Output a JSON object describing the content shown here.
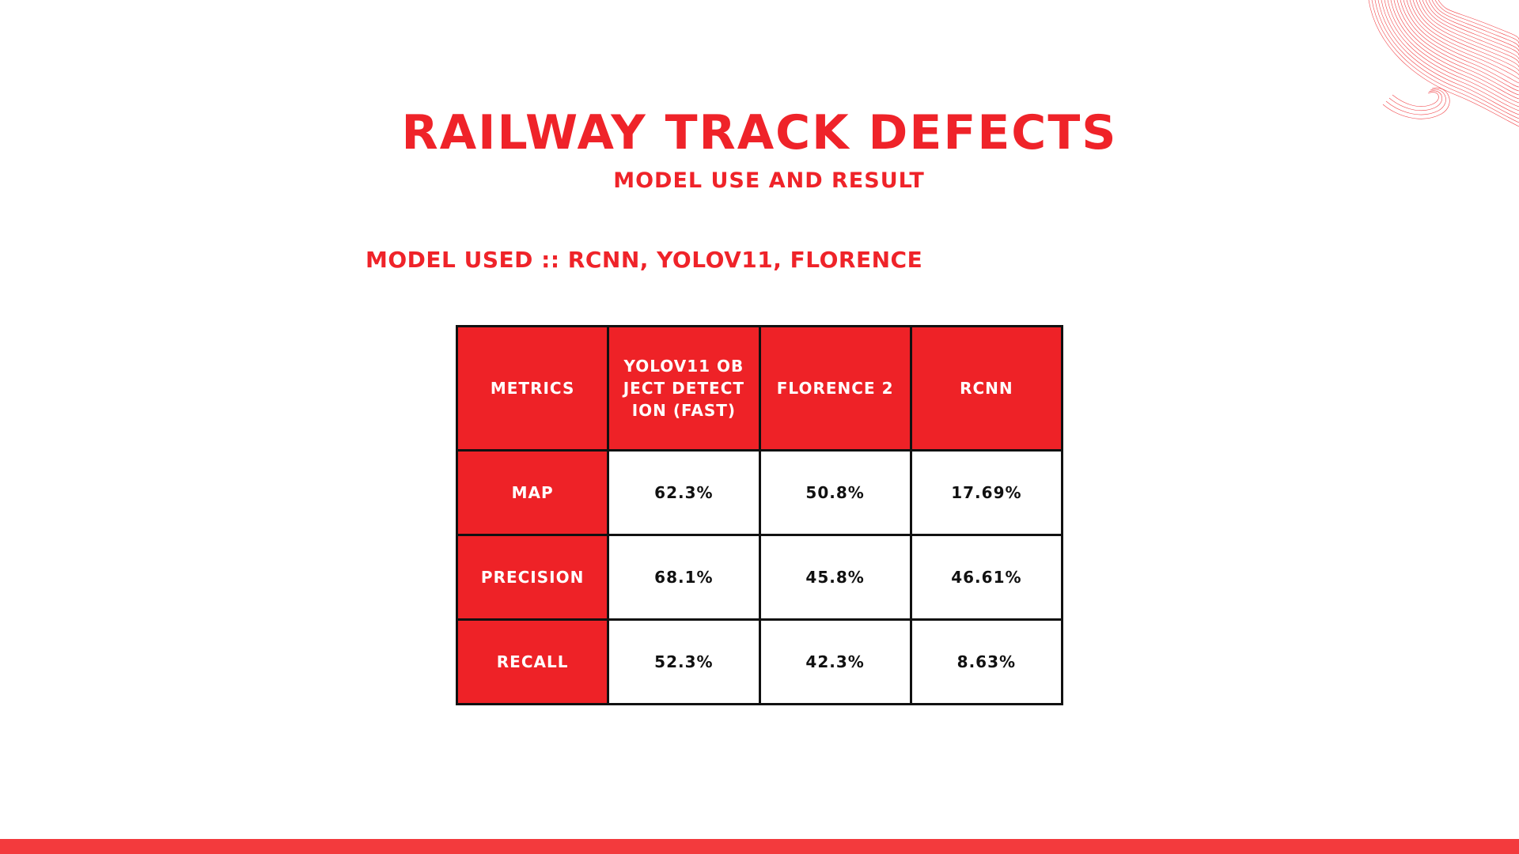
{
  "slide": {
    "title": "RAILWAY TRACK DEFECTS",
    "subtitle": "MODEL USE AND RESULT",
    "models_used": "MODEL USED :: RCNN, YOLOV11, FLORENCE"
  },
  "table": {
    "headers": [
      "METRICS",
      "YOLOV11 OBJECT DETECTION (FAST)",
      "FLORENCE 2",
      "RCNN"
    ],
    "rows": [
      {
        "metric": "MAP",
        "values": [
          "62.3%",
          "50.8%",
          "17.69%"
        ]
      },
      {
        "metric": "PRECISION",
        "values": [
          "68.1%",
          "45.8%",
          "46.61%"
        ]
      },
      {
        "metric": "RECALL",
        "values": [
          "52.3%",
          "42.3%",
          "8.63%"
        ]
      }
    ]
  },
  "colors": {
    "accent": "#ef2329",
    "header_fill": "#ee2227",
    "bottom_bar": "#f33a3d",
    "border": "#111111"
  }
}
